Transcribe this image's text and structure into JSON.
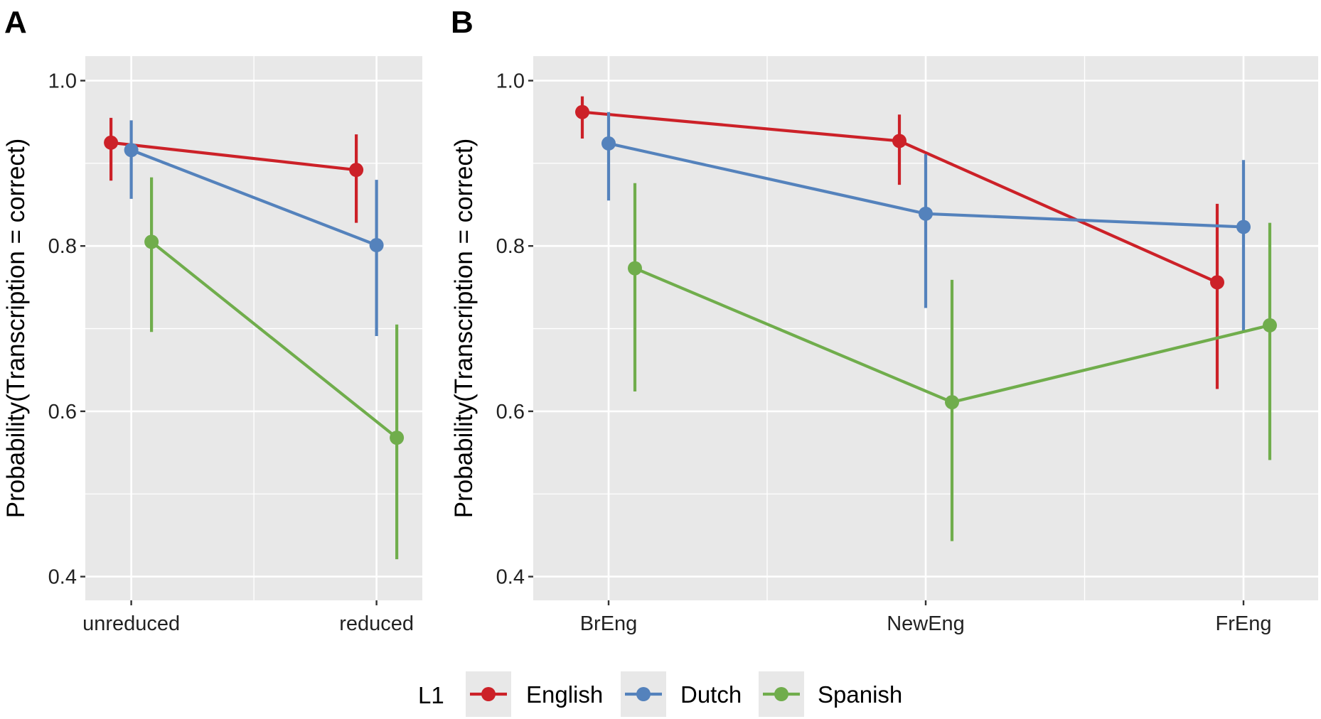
{
  "colors": {
    "English": "#CC2128",
    "Dutch": "#5482BC",
    "Spanish": "#70AD4C",
    "panel_bg": "#E8E8E8",
    "grid": "#FFFFFF"
  },
  "legend": {
    "title": "L1",
    "entries": [
      "English",
      "Dutch",
      "Spanish"
    ],
    "placement": "bottom"
  },
  "chart_data": [
    {
      "type": "line",
      "panel_label": "A",
      "ylabel": "Probability(Transcription = correct)",
      "xlabel": "",
      "ylim": [
        0.4,
        1.0
      ],
      "yticks": [
        "0.4",
        "0.6",
        "0.8",
        "1.0"
      ],
      "categories": [
        "unreduced",
        "reduced"
      ],
      "grid": true,
      "error_bars": true,
      "series": [
        {
          "name": "English",
          "values": [
            0.925,
            0.892
          ],
          "lower": [
            0.879,
            0.828
          ],
          "upper": [
            0.955,
            0.935
          ]
        },
        {
          "name": "Dutch",
          "values": [
            0.916,
            0.801
          ],
          "lower": [
            0.857,
            0.691
          ],
          "upper": [
            0.952,
            0.88
          ]
        },
        {
          "name": "Spanish",
          "values": [
            0.805,
            0.568
          ],
          "lower": [
            0.696,
            0.421
          ],
          "upper": [
            0.883,
            0.705
          ]
        }
      ]
    },
    {
      "type": "line",
      "panel_label": "B",
      "ylabel": "Probability(Transcription = correct)",
      "xlabel": "",
      "ylim": [
        0.4,
        1.0
      ],
      "yticks": [
        "0.4",
        "0.6",
        "0.8",
        "1.0"
      ],
      "categories": [
        "BrEng",
        "NewEng",
        "FrEng"
      ],
      "grid": true,
      "error_bars": true,
      "series": [
        {
          "name": "English",
          "values": [
            0.962,
            0.927,
            0.756
          ],
          "lower": [
            0.93,
            0.874,
            0.627
          ],
          "upper": [
            0.981,
            0.959,
            0.851
          ]
        },
        {
          "name": "Dutch",
          "values": [
            0.924,
            0.839,
            0.823
          ],
          "lower": [
            0.855,
            0.725,
            0.697
          ],
          "upper": [
            0.962,
            0.911,
            0.904
          ]
        },
        {
          "name": "Spanish",
          "values": [
            0.773,
            0.611,
            0.704
          ],
          "lower": [
            0.624,
            0.443,
            0.541
          ],
          "upper": [
            0.876,
            0.759,
            0.828
          ]
        }
      ]
    }
  ]
}
